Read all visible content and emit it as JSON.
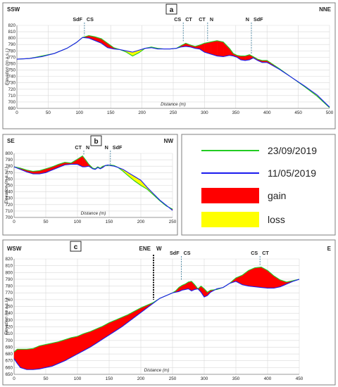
{
  "legend": {
    "entries": [
      {
        "label": "23/09/2019",
        "kind": "line",
        "color": "#22cc22"
      },
      {
        "label": "11/05/2019",
        "kind": "line",
        "color": "#1a1aee"
      },
      {
        "label": "gain",
        "kind": "fill",
        "color": "#ff0000"
      },
      {
        "label": "loss",
        "kind": "fill",
        "color": "#ffff00"
      }
    ]
  },
  "chart_data": [
    {
      "id": "a",
      "type": "area",
      "panel_label": "a",
      "left_direction": "SSW",
      "right_direction": "NNE",
      "xlabel": "Distance (m)",
      "ylabel": "Elevation (m a.s.l.)",
      "xlim": [
        0,
        500
      ],
      "ylim": [
        690,
        820
      ],
      "xticks": [
        0,
        50,
        100,
        150,
        200,
        250,
        300,
        350,
        400,
        450,
        500
      ],
      "yticks": [
        690,
        700,
        710,
        720,
        730,
        740,
        750,
        760,
        770,
        780,
        790,
        800,
        810,
        820
      ],
      "annotations": [
        {
          "x": 108,
          "y": 804,
          "left": "SdF",
          "right": "CS"
        },
        {
          "x": 266,
          "y": 794,
          "left": "CS",
          "right": "CT"
        },
        {
          "x": 305,
          "y": 796,
          "left": "CT",
          "right": "N"
        },
        {
          "x": 375,
          "y": 775,
          "left": "N",
          "right": "SdF"
        }
      ],
      "series": [
        {
          "name": "11/05/2019",
          "color": "#1a1aee",
          "x": [
            0,
            20,
            40,
            60,
            80,
            95,
            105,
            115,
            125,
            135,
            145,
            155,
            165,
            175,
            185,
            195,
            205,
            215,
            225,
            235,
            245,
            255,
            262,
            270,
            278,
            285,
            292,
            300,
            310,
            320,
            330,
            340,
            346,
            352,
            358,
            365,
            372,
            378,
            385,
            392,
            400,
            420,
            440,
            460,
            480,
            500
          ],
          "y": [
            767,
            768,
            771,
            776,
            784,
            793,
            801,
            800,
            796,
            792,
            785,
            783,
            782,
            780,
            778,
            781,
            784,
            785,
            783,
            783,
            783,
            784,
            786,
            787,
            786,
            784,
            783,
            778,
            775,
            772,
            771,
            773,
            772,
            770,
            766,
            765,
            766,
            769,
            765,
            762,
            762,
            751,
            738,
            725,
            711,
            692
          ]
        },
        {
          "name": "23/09/2019",
          "color": "#22cc22",
          "x": [
            0,
            20,
            40,
            60,
            80,
            95,
            105,
            115,
            125,
            135,
            145,
            155,
            165,
            175,
            185,
            195,
            205,
            215,
            225,
            235,
            245,
            255,
            262,
            270,
            278,
            285,
            292,
            300,
            310,
            320,
            330,
            340,
            346,
            352,
            358,
            365,
            372,
            378,
            385,
            392,
            400,
            420,
            440,
            460,
            480,
            500
          ],
          "y": [
            767,
            768,
            772,
            776,
            784,
            793,
            801,
            804,
            802,
            799,
            792,
            785,
            782,
            778,
            772,
            777,
            784,
            786,
            784,
            783,
            783,
            784,
            788,
            792,
            789,
            787,
            789,
            792,
            794,
            796,
            794,
            784,
            776,
            773,
            772,
            772,
            774,
            771,
            767,
            765,
            765,
            752,
            738,
            724,
            709,
            691
          ]
        }
      ]
    },
    {
      "id": "b",
      "type": "area",
      "panel_label": "b",
      "left_direction": "SE",
      "right_direction": "NW",
      "xlabel": "Distance (m)",
      "ylabel": "Elevation (m a.s.l.)",
      "xlim": [
        0,
        250
      ],
      "ylim": [
        700,
        800
      ],
      "xticks": [
        0,
        50,
        100,
        150,
        200,
        250
      ],
      "yticks": [
        700,
        710,
        720,
        730,
        740,
        750,
        760,
        770,
        780,
        790,
        800
      ],
      "annotations": [
        {
          "x": 110,
          "y": 798,
          "left": "CT",
          "right": "N"
        },
        {
          "x": 152,
          "y": 783,
          "left": "N",
          "right": "SdF"
        }
      ],
      "series": [
        {
          "name": "11/05/2019",
          "color": "#1a1aee",
          "x": [
            0,
            10,
            20,
            30,
            40,
            50,
            60,
            70,
            80,
            90,
            100,
            108,
            112,
            118,
            124,
            128,
            132,
            136,
            140,
            144,
            148,
            152,
            158,
            164,
            172,
            180,
            190,
            200,
            210,
            220,
            230,
            240,
            250
          ],
          "y": [
            779,
            775,
            771,
            768,
            768,
            770,
            774,
            778,
            782,
            783,
            783,
            779,
            779,
            780,
            776,
            775,
            778,
            776,
            778,
            781,
            782,
            781,
            780,
            778,
            775,
            770,
            764,
            758,
            747,
            737,
            727,
            719,
            711
          ]
        },
        {
          "name": "23/09/2019",
          "color": "#22cc22",
          "x": [
            0,
            10,
            20,
            30,
            40,
            50,
            60,
            70,
            80,
            90,
            100,
            108,
            112,
            118,
            124,
            128,
            132,
            136,
            140,
            144,
            148,
            152,
            158,
            164,
            172,
            180,
            190,
            200,
            210,
            220,
            230,
            240,
            250
          ],
          "y": [
            779,
            777,
            774,
            772,
            773,
            776,
            779,
            783,
            786,
            785,
            791,
            796,
            791,
            783,
            777,
            776,
            779,
            777,
            780,
            781,
            781,
            782,
            781,
            778,
            772,
            765,
            757,
            750,
            744,
            735,
            726,
            718,
            713
          ]
        }
      ]
    },
    {
      "id": "c",
      "type": "area",
      "panel_label": "c",
      "left_direction": "WSW",
      "right_direction": "E",
      "section_boundary_x": 220,
      "section_boundary_labels": [
        "ENE",
        "W"
      ],
      "xlabel": "Distance (m)",
      "ylabel": "Elevation (m a.s.l.)",
      "xlim": [
        0,
        450
      ],
      "ylim": [
        650,
        820
      ],
      "xticks": [
        0,
        50,
        100,
        150,
        200,
        250,
        300,
        350,
        400,
        450
      ],
      "yticks": [
        650,
        660,
        670,
        680,
        690,
        700,
        710,
        720,
        730,
        740,
        750,
        760,
        770,
        780,
        790,
        800,
        810,
        820
      ],
      "annotations": [
        {
          "x": 264,
          "y": 788,
          "left": "SdF",
          "right": "CS"
        },
        {
          "x": 388,
          "y": 810,
          "left": "CS",
          "right": "CT"
        }
      ],
      "series": [
        {
          "name": "11/05/2019",
          "color": "#1a1aee",
          "x": [
            0,
            5,
            10,
            20,
            30,
            40,
            50,
            60,
            70,
            80,
            90,
            100,
            110,
            120,
            130,
            140,
            150,
            160,
            170,
            180,
            190,
            200,
            210,
            220,
            230,
            240,
            250,
            255,
            260,
            265,
            270,
            275,
            280,
            285,
            290,
            295,
            300,
            305,
            310,
            320,
            330,
            340,
            350,
            360,
            370,
            380,
            390,
            400,
            410,
            420,
            430,
            440,
            450
          ],
          "y": [
            673,
            666,
            660,
            657,
            657,
            658,
            660,
            662,
            666,
            670,
            675,
            680,
            685,
            690,
            696,
            702,
            708,
            714,
            720,
            727,
            734,
            741,
            748,
            755,
            762,
            766,
            770,
            771,
            772,
            774,
            775,
            776,
            773,
            775,
            776,
            771,
            764,
            766,
            771,
            776,
            778,
            784,
            787,
            782,
            780,
            779,
            778,
            777,
            777,
            779,
            783,
            787,
            790
          ]
        },
        {
          "name": "23/09/2019",
          "color": "#22cc22",
          "x": [
            0,
            5,
            10,
            20,
            30,
            40,
            50,
            60,
            70,
            80,
            90,
            100,
            110,
            120,
            130,
            140,
            150,
            160,
            170,
            180,
            190,
            200,
            210,
            220,
            230,
            240,
            250,
            255,
            260,
            265,
            270,
            275,
            280,
            285,
            290,
            295,
            300,
            305,
            310,
            320,
            330,
            340,
            350,
            360,
            370,
            380,
            390,
            400,
            410,
            420,
            430,
            440,
            450
          ],
          "y": [
            683,
            687,
            687,
            687,
            688,
            692,
            694,
            696,
            698,
            701,
            704,
            706,
            710,
            713,
            717,
            721,
            726,
            730,
            734,
            738,
            743,
            748,
            752,
            756,
            762,
            766,
            770,
            773,
            778,
            781,
            783,
            786,
            787,
            782,
            776,
            780,
            776,
            771,
            774,
            775,
            778,
            784,
            792,
            796,
            803,
            807,
            808,
            803,
            795,
            789,
            786,
            788,
            790
          ]
        }
      ]
    }
  ]
}
